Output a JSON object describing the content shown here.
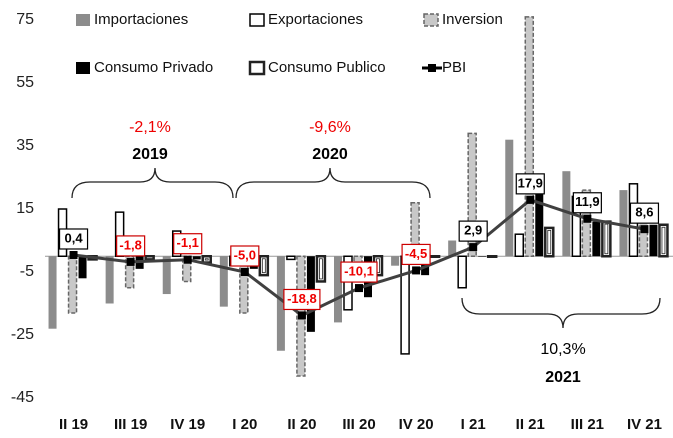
{
  "chart_data": {
    "type": "bar",
    "categories": [
      "II 19",
      "III 19",
      "IV 19",
      "I 20",
      "II 20",
      "III 20",
      "IV 20",
      "I 21",
      "II 21",
      "III 21",
      "IV 21"
    ],
    "series": [
      {
        "name": "Importaciones",
        "color": "#8c8c8c",
        "values": [
          -23,
          -15,
          -12,
          -16,
          -30,
          -21,
          -3,
          5,
          37,
          27,
          21
        ]
      },
      {
        "name": "Exportaciones",
        "color": "#ffffff",
        "values": [
          15,
          14,
          8,
          -3,
          -1,
          -17,
          -31,
          -10,
          7,
          19,
          23
        ]
      },
      {
        "name": "Inversion",
        "color": "#c8c8c8",
        "values": [
          -18,
          -10,
          -8,
          -18,
          -38,
          -3,
          17,
          39,
          76,
          21,
          13
        ]
      },
      {
        "name": "Consumo Privado",
        "color": "#000000",
        "values": [
          -7,
          -4,
          -1,
          -4,
          -24,
          -13,
          -6,
          0,
          20,
          11,
          10
        ]
      },
      {
        "name": "Consumo Publico",
        "color": "#ffffff",
        "values": [
          -1,
          -1,
          -2,
          -6,
          -8,
          -6,
          0,
          0,
          9,
          11,
          10
        ]
      },
      {
        "name": "PBI",
        "type": "line",
        "color": "#404040",
        "values": [
          0.4,
          -1.8,
          -1.1,
          -5.0,
          -18.8,
          -10.1,
          -4.5,
          2.9,
          17.9,
          11.9,
          8.6
        ],
        "value_labels": [
          "0,4",
          "-1,8",
          "-1,1",
          "-5,0",
          "-18,8",
          "-10,1",
          "-4,5",
          "2,9",
          "17,9",
          "11,9",
          "8,6"
        ]
      }
    ],
    "ylim": [
      -45,
      75
    ],
    "yticks": [
      -45,
      -25,
      -5,
      15,
      35,
      55,
      75
    ],
    "annotations": [
      "-2,1%",
      "2019",
      "-9,6%",
      "2020",
      "10,3%",
      "2021"
    ]
  }
}
